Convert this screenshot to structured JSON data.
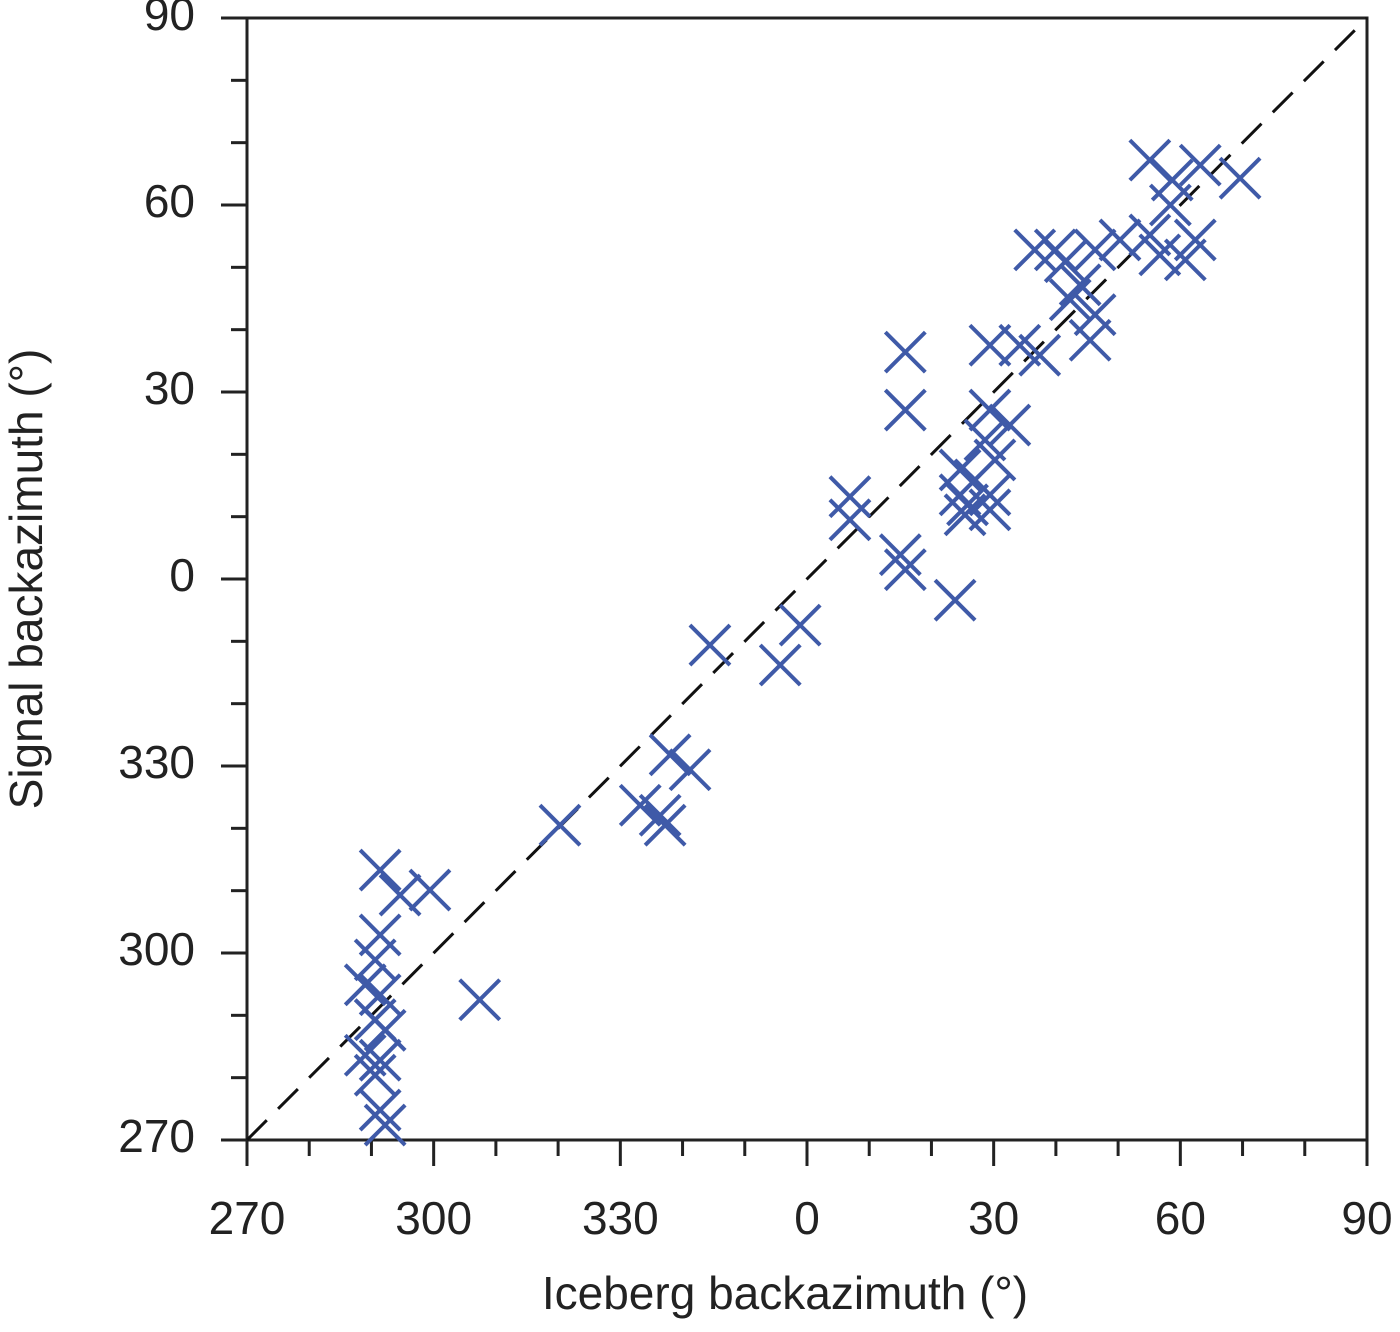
{
  "chart_data": {
    "type": "scatter",
    "x_label": "Iceberg backazimuth (°)",
    "y_label": "Signal backazimuth (°)",
    "color": "#3f5aa8",
    "marker": "x",
    "diagonal": true,
    "xlim": [
      270,
      450
    ],
    "ylim": [
      270,
      450
    ],
    "xticks": [
      270,
      300,
      330,
      {
        "value": 360,
        "label": "0"
      },
      {
        "value": 390,
        "label": "30"
      },
      {
        "value": 420,
        "label": "60"
      },
      {
        "value": 450,
        "label": "90"
      }
    ],
    "yticks": [
      270,
      300,
      330,
      {
        "value": 360,
        "label": "0"
      },
      {
        "value": 390,
        "label": "30"
      },
      {
        "value": 420,
        "label": "60"
      },
      {
        "value": 450,
        "label": "90"
      }
    ],
    "xminorticks": [
      280,
      290,
      310,
      320,
      340,
      350,
      370,
      380,
      400,
      410,
      430,
      440
    ],
    "yminorticks": [
      280,
      290,
      310,
      320,
      340,
      350,
      370,
      380,
      400,
      410,
      430,
      440
    ],
    "x": [
      415.1,
      418.7,
      423.2,
      429.6,
      418.4,
      415.1,
      422.4,
      416.7,
      420.8,
      410.3,
      406.3,
      401.5,
      396.6,
      399.9,
      403.9,
      402.3,
      406.3,
      405.5,
      397.4,
      394.2,
      389.4,
      375.8,
      375.8,
      389.4,
      392.6,
      388.6,
      390.2,
      384.6,
      387.0,
      389.4,
      384.6,
      385.8,
      389.4,
      385.4,
      366.9,
      366.9,
      375.0,
      375.8,
      383.8,
      344.4,
      358.9,
      355.7,
      338.0,
      341.2,
      333.2,
      336.4,
      337.2,
      320.3,
      291.4,
      294.6,
      299.4,
      291.4,
      290.6,
      289.0,
      291.4,
      307.4,
      290.6,
      292.2,
      289.0,
      291.4,
      290.6,
      291.4,
      292.2
    ],
    "y": [
      427.2,
      424.0,
      426.4,
      424.3,
      420.0,
      415.2,
      414.4,
      412.0,
      411.2,
      414.4,
      412.8,
      410.9,
      412.8,
      412.8,
      407.2,
      404.8,
      402.4,
      398.3,
      395.9,
      397.5,
      397.5,
      396.4,
      387.1,
      387.1,
      384.7,
      382.3,
      379.1,
      377.5,
      375.9,
      373.5,
      373.5,
      371.9,
      371.1,
      370.3,
      373.2,
      369.5,
      363.9,
      361.5,
      356.6,
      349.4,
      352.6,
      346.2,
      331.8,
      329.4,
      323.7,
      322.1,
      320.5,
      320.5,
      313.3,
      309.3,
      310.1,
      302.9,
      298.9,
      294.9,
      293.3,
      292.5,
      289.3,
      287.6,
      283.6,
      282.8,
      280.4,
      274.8,
      272.4
    ]
  }
}
